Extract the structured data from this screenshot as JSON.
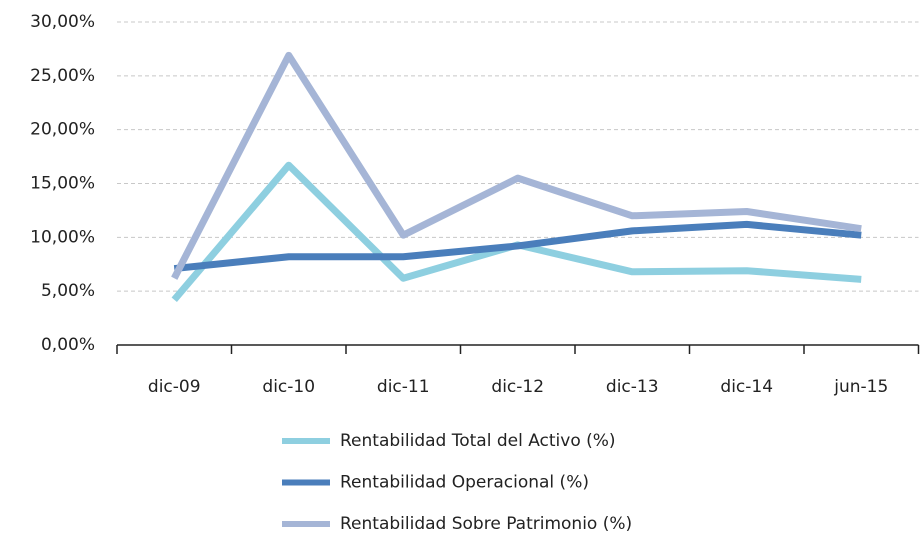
{
  "chart_data": {
    "type": "line",
    "categories": [
      "dic-09",
      "dic-10",
      "dic-11",
      "dic-12",
      "dic-13",
      "dic-14",
      "jun-15"
    ],
    "series": [
      {
        "name": "Rentabilidad Total  del Activo (%)",
        "color": "#8ecfe0",
        "values": [
          4.2,
          16.7,
          6.2,
          9.3,
          6.8,
          6.9,
          6.1
        ]
      },
      {
        "name": "Rentabilidad Operacional (%)",
        "color": "#4a7ebb",
        "values": [
          7.1,
          8.2,
          8.2,
          9.2,
          10.6,
          11.2,
          10.2
        ]
      },
      {
        "name": "Rentabilidad Sobre Patrimonio (%)",
        "color": "#a5b5d6",
        "values": [
          6.2,
          26.9,
          10.2,
          15.5,
          12.0,
          12.4,
          10.8
        ]
      }
    ],
    "ylim": [
      0,
      30
    ],
    "yticks": [
      {
        "value": 0,
        "label": "0,00%"
      },
      {
        "value": 5,
        "label": "5,00%"
      },
      {
        "value": 10,
        "label": "10,00%"
      },
      {
        "value": 15,
        "label": "15,00%"
      },
      {
        "value": 20,
        "label": "20,00%"
      },
      {
        "value": 25,
        "label": "25,00%"
      },
      {
        "value": 30,
        "label": "30,00%"
      }
    ],
    "grid": true
  }
}
